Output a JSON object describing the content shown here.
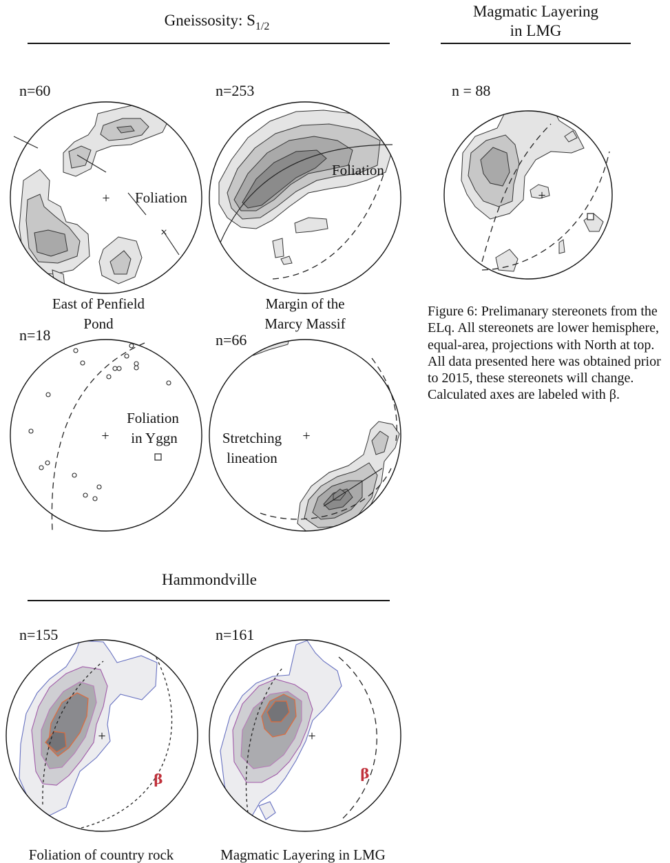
{
  "sections": {
    "gneissosity": {
      "title_main": "Gneissosity: S",
      "title_sub": "1/2"
    },
    "magmatic": {
      "title_line1": "Magmatic Layering",
      "title_line2": "in LMG"
    },
    "hammondville": {
      "title": "Hammondville"
    }
  },
  "stereonets": {
    "penfield": {
      "n": "n=60",
      "inner": "Foliation",
      "caption_line1": "East of Penfield",
      "caption_line2": "Pond"
    },
    "marcy": {
      "n": "n=253",
      "inner": "Foliation",
      "caption_line1": "Margin of the",
      "caption_line2": "Marcy Massif"
    },
    "yggn": {
      "n": "n=18",
      "inner_line1": "Foliation",
      "inner_line2": "in Yggn"
    },
    "stretching": {
      "n": "n=66",
      "inner_line1": "Stretching",
      "inner_line2": "lineation"
    },
    "lmg": {
      "n": "n = 88"
    },
    "country_rock": {
      "n": "n=155",
      "caption": "Foliation of country rock",
      "beta": "β"
    },
    "lmg_layering": {
      "n": "n=161",
      "caption": "Magmatic Layering in LMG",
      "beta": "β"
    }
  },
  "figure_caption": "Figure 6: Prelimanary stereonets from the ELq.  All stereonets are lower hemisphere, equal-area, projections with North at top.  All data presented here was obtained prior to 2015, these stereonets will change.  Calculated axes are labeled with β.",
  "colors": {
    "contour_outer": "#6670c0",
    "contour_mid": "#a05aa8",
    "contour_inner": "#e06a3a",
    "beta_label": "#c0303a"
  }
}
